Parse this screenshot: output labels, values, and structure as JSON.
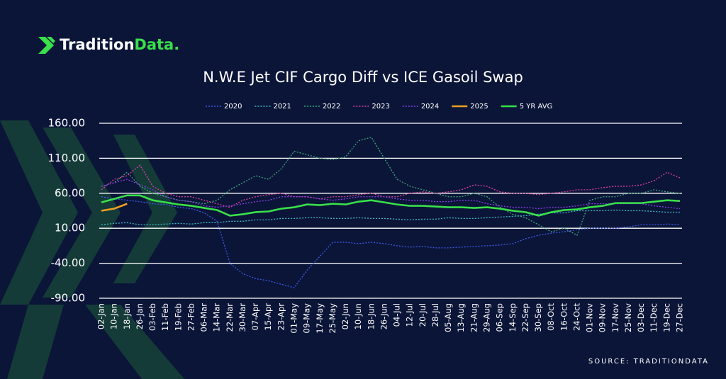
{
  "brand": [
    "Tradition",
    "Data."
  ],
  "chart_data": {
    "type": "line",
    "title": "N.W.E Jet CIF Cargo Diff vs ICE Gasoil Swap",
    "source": "SOURCE: TRADITIONDATA",
    "categories": [
      "02-Jan",
      "10-Jan",
      "18-Jan",
      "26-Jan",
      "03-Feb",
      "11-Feb",
      "19-Feb",
      "27-Feb",
      "06-Mar",
      "14-Mar",
      "22-Mar",
      "30-Mar",
      "07-Apr",
      "15-Apr",
      "23-Apr",
      "01-May",
      "09-May",
      "17-May",
      "25-May",
      "02-Jun",
      "10-Jun",
      "18-Jun",
      "26-Jun",
      "04-Jul",
      "12-Jul",
      "20-Jul",
      "28-Jul",
      "05-Aug",
      "13-Aug",
      "21-Aug",
      "29-Aug",
      "06-Sep",
      "14-Sep",
      "22-Sep",
      "30-Sep",
      "08-Oct",
      "16-Oct",
      "24-Oct",
      "01-Nov",
      "09-Nov",
      "17-Nov",
      "25-Nov",
      "03-Dec",
      "11-Dec",
      "19-Dec",
      "27-Dec"
    ],
    "ylim": [
      -90,
      160
    ],
    "yticks": [
      {
        "value": 160,
        "label": "160.00"
      },
      {
        "value": 110,
        "label": "110.00"
      },
      {
        "value": 60,
        "label": "60.00"
      },
      {
        "value": 10,
        "label": "10.00"
      },
      {
        "value": -40,
        "label": "-40.00"
      },
      {
        "value": -90,
        "label": "-90.00"
      }
    ],
    "grid": true,
    "legend": "top",
    "series": [
      {
        "name": "2020",
        "color": "#3d5ae6",
        "style": "dotted",
        "values": [
          55,
          52,
          50,
          48,
          45,
          44,
          40,
          38,
          32,
          20,
          -40,
          -55,
          -62,
          -65,
          -70,
          -75,
          -50,
          -30,
          -10,
          -10,
          -12,
          -10,
          -12,
          -15,
          -17,
          -16,
          -18,
          -18,
          -17,
          -16,
          -15,
          -14,
          -12,
          -5,
          0,
          3,
          5,
          8,
          10,
          10,
          10,
          12,
          15,
          15,
          16,
          15
        ]
      },
      {
        "name": "2021",
        "color": "#3fb8c8",
        "style": "dotted",
        "values": [
          15,
          17,
          18,
          15,
          15,
          16,
          17,
          16,
          18,
          18,
          20,
          20,
          22,
          22,
          24,
          24,
          25,
          25,
          24,
          24,
          25,
          24,
          24,
          23,
          22,
          23,
          23,
          25,
          24,
          24,
          25,
          26,
          27,
          28,
          30,
          32,
          32,
          35,
          35,
          35,
          36,
          35,
          35,
          34,
          33,
          33
        ]
      },
      {
        "name": "2022",
        "color": "#3fa87a",
        "style": "dotted",
        "values": [
          70,
          75,
          90,
          70,
          60,
          55,
          50,
          48,
          45,
          50,
          65,
          75,
          85,
          80,
          95,
          120,
          115,
          110,
          108,
          112,
          135,
          140,
          110,
          80,
          70,
          65,
          60,
          55,
          55,
          60,
          55,
          40,
          30,
          25,
          15,
          5,
          10,
          0,
          50,
          55,
          55,
          60,
          60,
          65,
          62,
          60
        ]
      },
      {
        "name": "2023",
        "color": "#e040a0",
        "style": "dotted",
        "values": [
          65,
          80,
          85,
          100,
          70,
          60,
          55,
          55,
          50,
          45,
          40,
          50,
          55,
          58,
          60,
          55,
          55,
          52,
          55,
          55,
          58,
          60,
          55,
          55,
          60,
          62,
          60,
          62,
          65,
          72,
          70,
          62,
          60,
          60,
          58,
          60,
          62,
          65,
          65,
          68,
          70,
          70,
          72,
          78,
          90,
          82
        ]
      },
      {
        "name": "2024",
        "color": "#8a3ee6",
        "style": "dotted",
        "values": [
          70,
          75,
          80,
          72,
          65,
          55,
          50,
          48,
          42,
          40,
          42,
          45,
          48,
          50,
          55,
          55,
          55,
          52,
          50,
          52,
          55,
          55,
          55,
          52,
          50,
          50,
          48,
          48,
          50,
          50,
          45,
          42,
          40,
          40,
          38,
          40,
          40,
          42,
          45,
          45,
          45,
          45,
          45,
          42,
          40,
          38
        ]
      },
      {
        "name": "2025",
        "color": "#f0a020",
        "style": "solid",
        "values": [
          35,
          38,
          45,
          null,
          null,
          null,
          null,
          null,
          null,
          null,
          null,
          null,
          null,
          null,
          null,
          null,
          null,
          null,
          null,
          null,
          null,
          null,
          null,
          null,
          null,
          null,
          null,
          null,
          null,
          null,
          null,
          null,
          null,
          null,
          null,
          null,
          null,
          null,
          null,
          null,
          null,
          null,
          null,
          null,
          null,
          null
        ]
      },
      {
        "name": "5 YR AVG",
        "color": "#39e04a",
        "style": "solid",
        "values": [
          47,
          52,
          57,
          57,
          50,
          47,
          44,
          42,
          39,
          36,
          28,
          30,
          33,
          34,
          38,
          40,
          44,
          43,
          45,
          44,
          48,
          50,
          47,
          44,
          42,
          42,
          41,
          40,
          40,
          39,
          40,
          38,
          35,
          33,
          28,
          33,
          36,
          37,
          40,
          42,
          46,
          46,
          46,
          48,
          50,
          49
        ]
      }
    ]
  }
}
